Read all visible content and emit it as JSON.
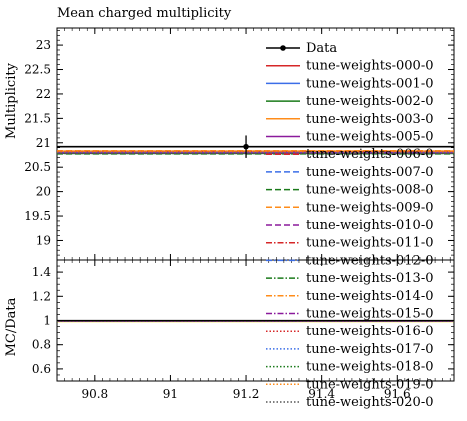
{
  "chart_data": {
    "type": "line",
    "title": "Mean charged multiplicity",
    "xlim": [
      90.7,
      91.75
    ],
    "x_ticks": [
      90.8,
      91,
      91.2,
      91.4,
      91.6
    ],
    "x_tick_labels": [
      "90.8",
      "91",
      "91.2",
      "91.4",
      "91.6"
    ],
    "top": {
      "ylabel": "Multiplicity",
      "ylim": [
        18.6,
        23.35
      ],
      "y_ticks": [
        19,
        19.5,
        20,
        20.5,
        21,
        21.5,
        22,
        22.5,
        23
      ],
      "y_tick_labels": [
        "19",
        "19.5",
        "20",
        "20.5",
        "21",
        "21.5",
        "22",
        "22.5",
        "23"
      ]
    },
    "bottom": {
      "ylabel": "MC/Data",
      "ylim": [
        0.5,
        1.5
      ],
      "y_ticks": [
        0.6,
        0.8,
        1,
        1.2,
        1.4
      ],
      "y_tick_labels": [
        "0.6",
        "0.8",
        "1",
        "1.2",
        "1.4"
      ]
    },
    "data": {
      "name": "Data",
      "x": 91.2,
      "y": 20.92,
      "yerr": 0.23,
      "color": "#000000"
    },
    "series": [
      {
        "name": "tune-weights-000-0",
        "value": 20.8,
        "color": "#d62728",
        "dash": "solid"
      },
      {
        "name": "tune-weights-001-0",
        "value": 20.81,
        "color": "#3b6ee8",
        "dash": "solid"
      },
      {
        "name": "tune-weights-002-0",
        "value": 20.78,
        "color": "#1a7a1a",
        "dash": "solid"
      },
      {
        "name": "tune-weights-003-0",
        "value": 20.83,
        "color": "#ff8c1a",
        "dash": "solid"
      },
      {
        "name": "tune-weights-005-0",
        "value": 20.79,
        "color": "#8b1a9c",
        "dash": "solid"
      },
      {
        "name": "tune-weights-006-0",
        "value": 20.82,
        "color": "#d62728",
        "dash": "dashed"
      },
      {
        "name": "tune-weights-007-0",
        "value": 20.8,
        "color": "#3b6ee8",
        "dash": "dashed"
      },
      {
        "name": "tune-weights-008-0",
        "value": 20.77,
        "color": "#1a7a1a",
        "dash": "dashed"
      },
      {
        "name": "tune-weights-009-0",
        "value": 20.84,
        "color": "#ff8c1a",
        "dash": "dashed"
      },
      {
        "name": "tune-weights-010-0",
        "value": 20.79,
        "color": "#8b1a9c",
        "dash": "dashed"
      },
      {
        "name": "tune-weights-011-0",
        "value": 20.81,
        "color": "#d62728",
        "dash": "dashdot"
      },
      {
        "name": "tune-weights-012-0",
        "value": 20.8,
        "color": "#3b6ee8",
        "dash": "dashdot"
      },
      {
        "name": "tune-weights-013-0",
        "value": 20.78,
        "color": "#1a7a1a",
        "dash": "dashdot"
      },
      {
        "name": "tune-weights-014-0",
        "value": 20.83,
        "color": "#ff8c1a",
        "dash": "dashdot"
      },
      {
        "name": "tune-weights-015-0",
        "value": 20.79,
        "color": "#8b1a9c",
        "dash": "dashdot"
      },
      {
        "name": "tune-weights-016-0",
        "value": 20.82,
        "color": "#d62728",
        "dash": "dotted"
      },
      {
        "name": "tune-weights-017-0",
        "value": 20.8,
        "color": "#3b6ee8",
        "dash": "dotted"
      },
      {
        "name": "tune-weights-018-0",
        "value": 20.78,
        "color": "#1a7a1a",
        "dash": "dotted"
      },
      {
        "name": "tune-weights-019-0",
        "value": 20.81,
        "color": "#ff8c1a",
        "dash": "dotted"
      },
      {
        "name": "tune-weights-020-0",
        "value": 20.79,
        "color": "#555555",
        "dash": "dotted"
      }
    ],
    "legend_placement": "top-right",
    "grid": false
  }
}
